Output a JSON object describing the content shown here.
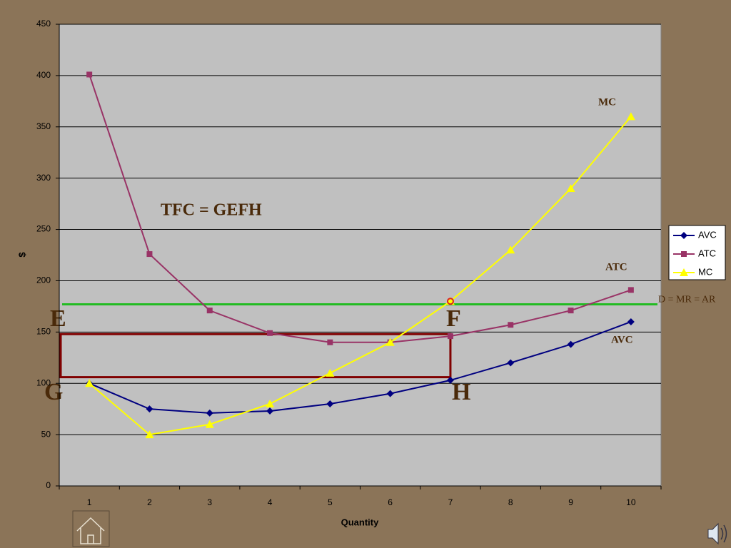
{
  "chart_data": {
    "type": "line",
    "x_label": "Quantity",
    "y_label": "$",
    "categories": [
      "1",
      "2",
      "3",
      "4",
      "5",
      "6",
      "7",
      "8",
      "9",
      "10"
    ],
    "series": [
      {
        "name": "AVC",
        "color": "#000080",
        "marker": "diamond",
        "values": [
          100,
          75,
          71,
          73,
          80,
          90,
          103,
          120,
          138,
          160
        ]
      },
      {
        "name": "ATC",
        "color": "#993366",
        "marker": "square",
        "values": [
          401,
          226,
          171,
          149,
          140,
          140,
          146,
          157,
          171,
          191
        ]
      },
      {
        "name": "MC",
        "color": "#ffff00",
        "marker": "triangle",
        "values": [
          100,
          50,
          60,
          80,
          110,
          140,
          180,
          230,
          290,
          360
        ]
      }
    ],
    "ylim": [
      0,
      450
    ],
    "yticks": [
      0,
      50,
      100,
      150,
      200,
      250,
      300,
      350,
      400,
      450
    ],
    "grid": true,
    "legend": "right",
    "demand_line": {
      "label": "D = MR = AR",
      "value": 177,
      "color": "#22bb22"
    },
    "rectangle": {
      "bottom": 106,
      "top": 148,
      "to": "7",
      "color": "#800000"
    },
    "highlight": {
      "category": "7",
      "value": 180,
      "color": "#dd2222"
    },
    "annotations": {
      "area": "TFC = GEFH",
      "mc": "MC",
      "atc": "ATC",
      "avc": "AVC",
      "e": "E",
      "f": "F",
      "g": "G",
      "h": "H"
    }
  }
}
